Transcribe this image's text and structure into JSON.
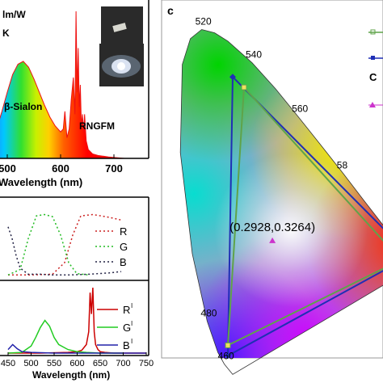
{
  "chart_data": [
    {
      "type": "line",
      "panel_labels": [
        "lm/W",
        "K"
      ],
      "xlabel": "Wavelength (nm)",
      "x_ticks": [
        500,
        600,
        700
      ],
      "xlim": [
        440,
        780
      ],
      "annotations": [
        "β-Sialon",
        "RNGFM"
      ],
      "series": [
        {
          "color": "#ee1111",
          "x": [
            430,
            450,
            460,
            470,
            480,
            490,
            500,
            510,
            520,
            530,
            540,
            550,
            560,
            570,
            580,
            590,
            600,
            605,
            608,
            612,
            616,
            620,
            624,
            627,
            629,
            631,
            633,
            635,
            637,
            639,
            641,
            643,
            645,
            648,
            652,
            660,
            670,
            690,
            720,
            750
          ],
          "y": [
            0.0,
            0.01,
            0.05,
            0.12,
            0.2,
            0.32,
            0.45,
            0.57,
            0.64,
            0.66,
            0.62,
            0.54,
            0.45,
            0.36,
            0.28,
            0.22,
            0.18,
            0.2,
            0.32,
            0.14,
            0.2,
            0.4,
            0.55,
            0.3,
            1.0,
            0.45,
            0.75,
            0.35,
            0.5,
            0.22,
            0.3,
            0.18,
            0.3,
            0.12,
            0.06,
            0.03,
            0.02,
            0.01,
            0.0,
            0.0
          ]
        }
      ]
    },
    {
      "type": "line",
      "series": [
        {
          "name": "R",
          "color": "#cc2222",
          "x": [
            450,
            500,
            560,
            590,
            610,
            630,
            660,
            700,
            730
          ],
          "y": [
            0.02,
            0.02,
            0.03,
            0.2,
            0.6,
            0.88,
            0.9,
            0.86,
            0.82
          ]
        },
        {
          "name": "G",
          "color": "#22bb22",
          "x": [
            450,
            480,
            500,
            520,
            540,
            560,
            580,
            600,
            620,
            650
          ],
          "y": [
            0.02,
            0.1,
            0.55,
            0.88,
            0.9,
            0.87,
            0.6,
            0.2,
            0.04,
            0.02
          ]
        },
        {
          "name": "B",
          "color": "#222244",
          "x": [
            450,
            460,
            470,
            480,
            500,
            530,
            560,
            600,
            650,
            700,
            730
          ],
          "y": [
            0.72,
            0.55,
            0.3,
            0.12,
            0.03,
            0.03,
            0.02,
            0.02,
            0.03,
            0.05,
            0.07
          ]
        }
      ]
    },
    {
      "type": "line",
      "xlabel": "Wavelength (nm)",
      "x_ticks": [
        450,
        500,
        550,
        600,
        650,
        700,
        750
      ],
      "xlim": [
        440,
        755
      ],
      "series": [
        {
          "name": "R",
          "color": "#cc0000",
          "x": [
            450,
            520,
            580,
            600,
            610,
            620,
            625,
            628,
            631,
            634,
            637,
            640,
            645,
            650,
            660,
            680,
            720,
            750
          ],
          "y": [
            0.0,
            0.0,
            0.01,
            0.02,
            0.04,
            0.12,
            0.3,
            0.85,
            0.55,
            0.92,
            0.3,
            0.12,
            0.05,
            0.02,
            0.01,
            0.0,
            0.0,
            0.0
          ]
        },
        {
          "name": "G",
          "color": "#22cc22",
          "x": [
            450,
            480,
            500,
            510,
            520,
            530,
            540,
            550,
            560,
            580,
            600,
            620,
            650,
            700
          ],
          "y": [
            0.0,
            0.01,
            0.1,
            0.22,
            0.36,
            0.46,
            0.38,
            0.22,
            0.12,
            0.05,
            0.02,
            0.01,
            0.0,
            0.0
          ]
        },
        {
          "name": "B",
          "color": "#2222aa",
          "x": [
            450,
            460,
            470,
            480,
            500,
            550,
            600,
            700,
            750
          ],
          "y": [
            0.05,
            0.12,
            0.06,
            0.02,
            0.01,
            0.0,
            0.0,
            0.0,
            0.0
          ]
        }
      ]
    },
    {
      "type": "scatter",
      "panel_label": "c",
      "wavelength_labels": [
        {
          "text": "520",
          "x": 0.074,
          "y": 0.834
        },
        {
          "text": "540",
          "x": 0.23,
          "y": 0.754
        },
        {
          "text": "560",
          "x": 0.373,
          "y": 0.624
        },
        {
          "text": "58",
          "x": 0.512,
          "y": 0.488
        },
        {
          "text": "480",
          "x": 0.091,
          "y": 0.133
        },
        {
          "text": "460",
          "x": 0.144,
          "y": 0.03
        }
      ],
      "white_point": {
        "label": "(0.2928,0.3264)",
        "x": 0.2928,
        "y": 0.3264,
        "color": "#cc33cc"
      },
      "triangles": [
        {
          "color": "#1f2fb5",
          "points": [
            [
              0.17,
              0.72
            ],
            [
              0.72,
              0.29
            ],
            [
              0.155,
              0.05
            ]
          ]
        },
        {
          "color": "#5fa34a",
          "points": [
            [
              0.205,
              0.695
            ],
            [
              0.69,
              0.28
            ],
            [
              0.155,
              0.075
            ]
          ]
        }
      ]
    }
  ]
}
